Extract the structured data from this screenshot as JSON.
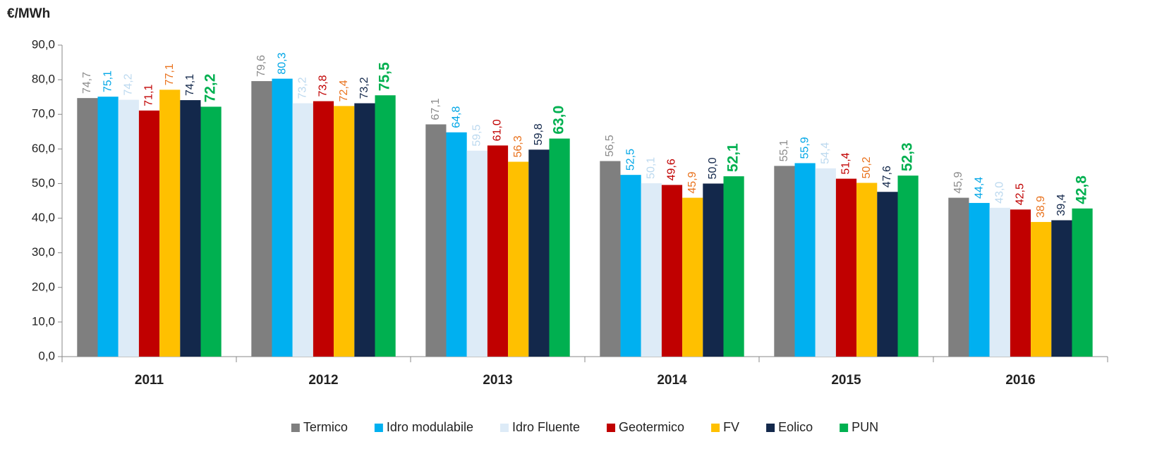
{
  "chart_data": {
    "type": "bar",
    "y_label": "€/MWh",
    "categories": [
      "2011",
      "2012",
      "2013",
      "2014",
      "2015",
      "2016"
    ],
    "series": [
      {
        "name": "Termico",
        "color": "#7f7f7f",
        "label_color": "#8c8c8c",
        "values": [
          74.7,
          79.6,
          67.1,
          56.5,
          55.1,
          45.9
        ],
        "value_labels": [
          "74,7",
          "79,6",
          "67,1",
          "56,5",
          "55,1",
          "45,9"
        ]
      },
      {
        "name": "Idro modulabile",
        "color": "#00b0f0",
        "label_color": "#00a6e6",
        "values": [
          75.1,
          80.3,
          64.8,
          52.5,
          55.9,
          44.4
        ],
        "value_labels": [
          "75,1",
          "80,3",
          "64,8",
          "52,5",
          "55,9",
          "44,4"
        ]
      },
      {
        "name": "Idro Fluente",
        "color": "#ddebf7",
        "label_color": "#bcd9ef",
        "values": [
          74.2,
          73.2,
          59.5,
          50.1,
          54.4,
          43.0
        ],
        "value_labels": [
          "74,2",
          "73,2",
          "59,5",
          "50,1",
          "54,4",
          "43,0"
        ]
      },
      {
        "name": "Geotermico",
        "color": "#c00000",
        "label_color": "#c00000",
        "values": [
          71.1,
          73.8,
          61.0,
          49.6,
          51.4,
          42.5
        ],
        "value_labels": [
          "71,1",
          "73,8",
          "61,0",
          "49,6",
          "51,4",
          "42,5"
        ]
      },
      {
        "name": "FV",
        "color": "#ffc000",
        "label_color": "#e9731f",
        "values": [
          77.1,
          72.4,
          56.3,
          45.9,
          50.2,
          38.9
        ],
        "value_labels": [
          "77,1",
          "72,4",
          "56,3",
          "45,9",
          "50,2",
          "38,9"
        ]
      },
      {
        "name": "Eolico",
        "color": "#13284b",
        "label_color": "#13284b",
        "values": [
          74.1,
          73.2,
          59.8,
          50.0,
          47.6,
          39.4
        ],
        "value_labels": [
          "74,1",
          "73,2",
          "59,8",
          "50,0",
          "47,6",
          "39,4"
        ]
      },
      {
        "name": "PUN",
        "color": "#00b050",
        "label_color": "#00b050",
        "bold": true,
        "values": [
          72.2,
          75.5,
          63.0,
          52.1,
          52.3,
          42.8
        ],
        "value_labels": [
          "72,2",
          "75,5",
          "63,0",
          "52,1",
          "52,3",
          "42,8"
        ]
      }
    ],
    "ylim": [
      0,
      90
    ],
    "yticks": [
      {
        "value": 0,
        "label": "0,0"
      },
      {
        "value": 10,
        "label": "10,0"
      },
      {
        "value": 20,
        "label": "20,0"
      },
      {
        "value": 30,
        "label": "30,0"
      },
      {
        "value": 40,
        "label": "40,0"
      },
      {
        "value": 50,
        "label": "50,0"
      },
      {
        "value": 60,
        "label": "60,0"
      },
      {
        "value": 70,
        "label": "70,0"
      },
      {
        "value": 80,
        "label": "80,0"
      },
      {
        "value": 90,
        "label": "90,0"
      }
    ],
    "legend": "bottom"
  }
}
